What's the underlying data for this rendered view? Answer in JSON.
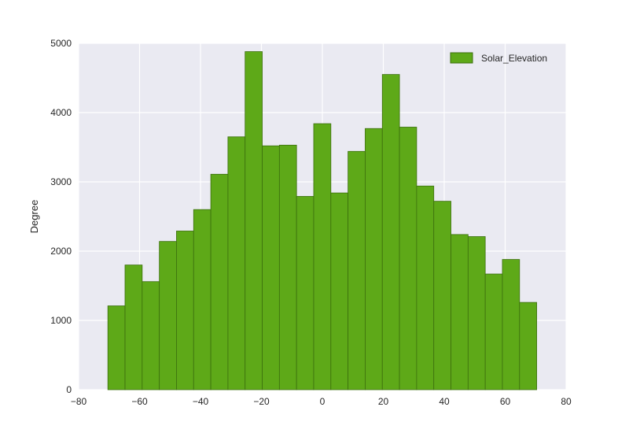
{
  "chart_data": {
    "type": "bar",
    "title": "",
    "xlabel": "",
    "ylabel": "Degree",
    "xlim": [
      -80,
      80
    ],
    "ylim": [
      0,
      5000
    ],
    "xticks": [
      -80,
      -60,
      -40,
      -20,
      0,
      20,
      40,
      60,
      80
    ],
    "yticks": [
      0,
      1000,
      2000,
      3000,
      4000,
      5000
    ],
    "grid": true,
    "legend_position": "top-right",
    "series": [
      {
        "name": "Solar_Elevation",
        "color": "#5ea918",
        "edge_color": "#3c6f0e",
        "bin_edges": [
          -70.4,
          -64.77,
          -59.14,
          -53.51,
          -47.88,
          -42.25,
          -36.62,
          -30.99,
          -25.36,
          -19.73,
          -14.1,
          -8.47,
          -2.84,
          2.79,
          8.42,
          14.05,
          19.68,
          25.31,
          30.94,
          36.57,
          42.2,
          47.83,
          53.46,
          59.09,
          64.72,
          70.35
        ],
        "counts": [
          1210,
          1800,
          1560,
          2140,
          2290,
          2600,
          3110,
          3650,
          4880,
          3520,
          3530,
          2790,
          3840,
          2840,
          3440,
          3770,
          4550,
          3790,
          2940,
          2720,
          2240,
          2210,
          1670,
          1880,
          1260
        ]
      }
    ]
  }
}
